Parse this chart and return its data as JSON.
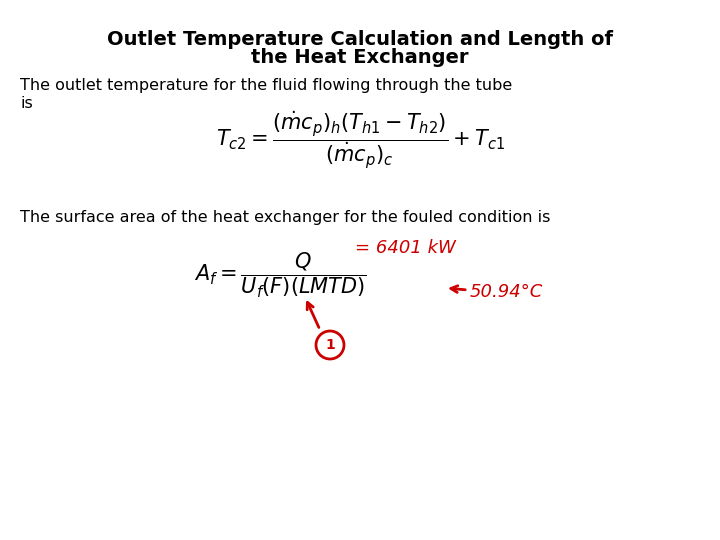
{
  "title_line1": "Outlet Temperature Calculation and Length of",
  "title_line2": "the Heat Exchanger",
  "text1_line1": "The outlet temperature for the fluid flowing through the tube",
  "text1_line2": "is",
  "formula1": "$T_{c2} = \\dfrac{(\\dot{m}c_p)_h(T_{h1} - T_{h2})}{(\\dot{m}c_p)_c} + T_{c1}$",
  "text2": "The surface area of the heat exchanger for the fouled condition is",
  "formula2": "$A_f = \\dfrac{Q}{U_f(F)(LMTD)}$",
  "annot_q": "= 6401 kW",
  "annot_t": "50.94°C",
  "bg_color": "#ffffff",
  "text_color": "#000000",
  "red_color": "#cc0000",
  "title_fontsize": 14,
  "body_fontsize": 11.5,
  "formula1_fontsize": 15,
  "formula2_fontsize": 15,
  "annot_fontsize": 13
}
